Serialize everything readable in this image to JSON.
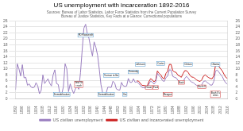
{
  "chart_data": {
    "type": "line",
    "title": "US unemployment with incarceration 1892-2016",
    "subtitle": [
      "Sources: Bureau of Labor Statistics, Labor Force Statistics from the Current Population Survey",
      "Bureau of Justice Statistics, Key Facts at a Glance: Correctional populations"
    ],
    "series": [
      {
        "name": "US civilian unemployment",
        "color": "#9b7fc0",
        "x": [
          1892,
          1893,
          1894,
          1895,
          1896,
          1897,
          1898,
          1899,
          1900,
          1901,
          1902,
          1903,
          1904,
          1905,
          1906,
          1907,
          1908,
          1909,
          1910,
          1911,
          1912,
          1913,
          1914,
          1915,
          1916,
          1917,
          1918,
          1919,
          1920,
          1921,
          1922,
          1923,
          1924,
          1925,
          1926,
          1927,
          1928,
          1929,
          1930,
          1931,
          1932,
          1933,
          1934,
          1935,
          1936,
          1937,
          1938,
          1939,
          1940,
          1941,
          1942,
          1943,
          1944,
          1945,
          1946,
          1947,
          1948,
          1949,
          1950,
          1951,
          1952,
          1953,
          1954,
          1955,
          1956,
          1957,
          1958,
          1959,
          1960,
          1961,
          1962,
          1963,
          1964,
          1965,
          1966,
          1967,
          1968,
          1969,
          1970,
          1971,
          1972,
          1973,
          1974,
          1975,
          1976,
          1977,
          1978,
          1979,
          1980,
          1981,
          1982,
          1983,
          1984,
          1985,
          1986,
          1987,
          1988,
          1989,
          1990,
          1991,
          1992,
          1993,
          1994,
          1995,
          1996,
          1997,
          1998,
          1999,
          2000,
          2001,
          2002,
          2003,
          2004,
          2005,
          2006,
          2007,
          2008,
          2009,
          2010,
          2011,
          2012,
          2013,
          2014,
          2015,
          2016
        ],
        "values": [
          3.0,
          11.7,
          10.0,
          7.6,
          11.4,
          7.0,
          7.2,
          4.5,
          5.0,
          4.0,
          3.7,
          3.9,
          5.4,
          4.3,
          1.7,
          2.8,
          8.0,
          5.1,
          5.9,
          6.7,
          5.2,
          4.3,
          8.0,
          9.7,
          5.1,
          4.8,
          1.4,
          1.5,
          4.0,
          11.7,
          10.0,
          2.4,
          5.0,
          3.2,
          1.8,
          3.3,
          4.2,
          3.2,
          8.7,
          16.3,
          23.6,
          24.9,
          21.7,
          20.1,
          17.0,
          14.3,
          19.0,
          17.2,
          14.6,
          9.9,
          4.7,
          1.9,
          1.2,
          1.9,
          3.9,
          3.9,
          3.8,
          5.9,
          5.3,
          3.3,
          3.0,
          2.9,
          5.5,
          4.4,
          4.1,
          4.3,
          6.8,
          5.5,
          5.5,
          6.7,
          5.5,
          5.7,
          5.2,
          4.5,
          3.8,
          3.8,
          3.6,
          3.5,
          4.9,
          5.9,
          5.6,
          4.9,
          5.6,
          8.5,
          7.7,
          7.1,
          6.1,
          5.8,
          7.1,
          7.6,
          9.7,
          9.6,
          7.5,
          7.2,
          7.0,
          6.2,
          5.5,
          5.3,
          5.6,
          6.8,
          7.5,
          6.9,
          6.1,
          5.6,
          5.4,
          4.9,
          4.5,
          4.2,
          4.0,
          4.7,
          5.8,
          6.0,
          5.5,
          5.1,
          4.6,
          4.6,
          5.8,
          9.3,
          9.6,
          8.9,
          8.1,
          7.4,
          6.2,
          5.3,
          4.9
        ]
      },
      {
        "name": "US civilian and incarcerated unemployment",
        "color": "#cc2222",
        "x": [
          1963,
          1964,
          1965,
          1966,
          1967,
          1968,
          1969,
          1970,
          1971,
          1972,
          1973,
          1974,
          1975,
          1976,
          1977,
          1978,
          1979,
          1980,
          1981,
          1982,
          1983,
          1984,
          1985,
          1986,
          1987,
          1988,
          1989,
          1990,
          1991,
          1992,
          1993,
          1994,
          1995,
          1996,
          1997,
          1998,
          1999,
          2000,
          2001,
          2002,
          2003,
          2004,
          2005,
          2006,
          2007,
          2008,
          2009,
          2010,
          2011,
          2012,
          2013,
          2014,
          2015,
          2016
        ],
        "values": [
          6.0,
          5.9,
          5.2,
          4.5,
          4.5,
          4.3,
          4.2,
          5.7,
          6.7,
          6.4,
          5.7,
          6.2,
          9.3,
          8.5,
          8.0,
          7.0,
          6.7,
          8.5,
          9.2,
          11.5,
          11.5,
          9.4,
          9.0,
          8.8,
          7.9,
          7.6,
          7.2,
          8.4,
          9.4,
          9.4,
          8.8,
          7.9,
          7.3,
          7.2,
          6.8,
          6.3,
          6.0,
          5.8,
          6.4,
          7.6,
          8.0,
          7.5,
          7.1,
          6.8,
          6.7,
          7.7,
          11.2,
          11.5,
          10.8,
          10.0,
          9.3,
          8.2,
          7.2,
          6.8
        ]
      }
    ],
    "xlim": [
      1892,
      2016
    ],
    "xticks": [
      1892,
      1896,
      1900,
      1904,
      1908,
      1912,
      1916,
      1920,
      1924,
      1928,
      1932,
      1936,
      1940,
      1944,
      1948,
      1952,
      1956,
      1960,
      1964,
      1968,
      1972,
      1976,
      1980,
      1984,
      1988,
      1992,
      1996,
      2000,
      2004,
      2008,
      2012,
      2016
    ],
    "ylim": [
      0,
      26
    ],
    "yticks": [
      0,
      2,
      4,
      6,
      8,
      10,
      12,
      14,
      16,
      18,
      20,
      22,
      24,
      26
    ],
    "y2lim": [
      0,
      26
    ],
    "y2ticks": [
      0,
      2,
      4,
      6,
      8,
      10,
      12,
      14,
      16,
      18,
      20,
      22,
      24,
      26
    ],
    "grid": "y",
    "legend": "bottom",
    "annotations": [
      {
        "text": "FD Roosevelt",
        "x": 1933,
        "y": 21.2,
        "color": "#5599cc"
      },
      {
        "text": "Truman to Ike",
        "x": 1948,
        "y": 7.8,
        "color": "#5599cc"
      },
      {
        "text": "Wall St\ncrash",
        "x": 1929,
        "y": 4.8,
        "color": "#cc3333"
      },
      {
        "text": "Demobilisation",
        "x": 1919,
        "y": 1.5,
        "color": "#5599cc"
      },
      {
        "text": "Demobilisation",
        "x": 1945,
        "y": 1.5,
        "color": "#5599cc"
      },
      {
        "text": "Ike",
        "x": 1956,
        "y": 1.5,
        "color": "#5599cc"
      },
      {
        "text": "Kennedy",
        "x": 1961,
        "y": 9.0,
        "color": "#5599cc"
      },
      {
        "text": "Johnson",
        "x": 1965,
        "y": 11.5,
        "color": "#5599cc"
      },
      {
        "text": "Nixon",
        "x": 1970,
        "y": 3.8,
        "color": "#cc3333"
      },
      {
        "text": "Ford",
        "x": 1974,
        "y": 3.8,
        "color": "#cc3333"
      },
      {
        "text": "Carter",
        "x": 1977,
        "y": 11.8,
        "color": "#5599cc"
      },
      {
        "text": "Reagan",
        "x": 1981,
        "y": 1.5,
        "color": "#cc3333"
      },
      {
        "text": "Bush",
        "x": 1989,
        "y": 5.5,
        "color": "#cc3333"
      },
      {
        "text": "Clinton",
        "x": 1993,
        "y": 11.5,
        "color": "#5599cc"
      },
      {
        "text": "Bush II",
        "x": 2001,
        "y": 4.0,
        "color": "#cc3333"
      },
      {
        "text": "Obama",
        "x": 2009,
        "y": 11.5,
        "color": "#5599cc"
      },
      {
        "text": "Bush II's\ncrisis",
        "x": 2009,
        "y": 1.5,
        "color": "#cc3333"
      }
    ]
  }
}
